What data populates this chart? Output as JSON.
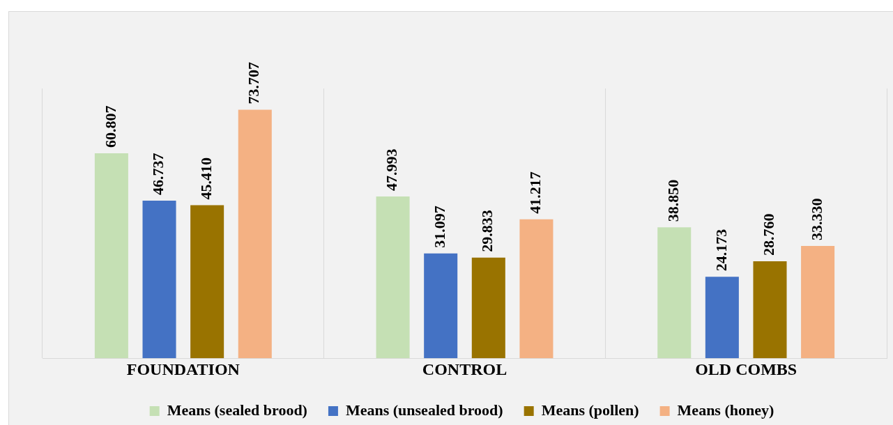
{
  "chart_data": {
    "type": "bar",
    "categories": [
      "FOUNDATION",
      "CONTROL",
      "OLD COMBS"
    ],
    "series": [
      {
        "name": "Means (sealed brood)",
        "color": "#c5e0b4",
        "values": [
          60.807,
          47.993,
          38.85
        ],
        "value_labels": [
          "60.807",
          "47.993",
          "38.850"
        ]
      },
      {
        "name": "Means (unsealed brood)",
        "color": "#4472c4",
        "values": [
          46.737,
          31.097,
          24.173
        ],
        "value_labels": [
          "46.737",
          "31.097",
          "24.173"
        ]
      },
      {
        "name": "Means (pollen)",
        "color": "#997300",
        "values": [
          45.41,
          29.833,
          28.76
        ],
        "value_labels": [
          "45.410",
          "29.833",
          "28.760"
        ]
      },
      {
        "name": "Means (honey)",
        "color": "#f4b183",
        "values": [
          73.707,
          41.217,
          33.33
        ],
        "value_labels": [
          "73.707",
          "41.217",
          "33.330"
        ]
      }
    ],
    "grid": "x",
    "legend": "bottom",
    "tick_labels": "x"
  }
}
